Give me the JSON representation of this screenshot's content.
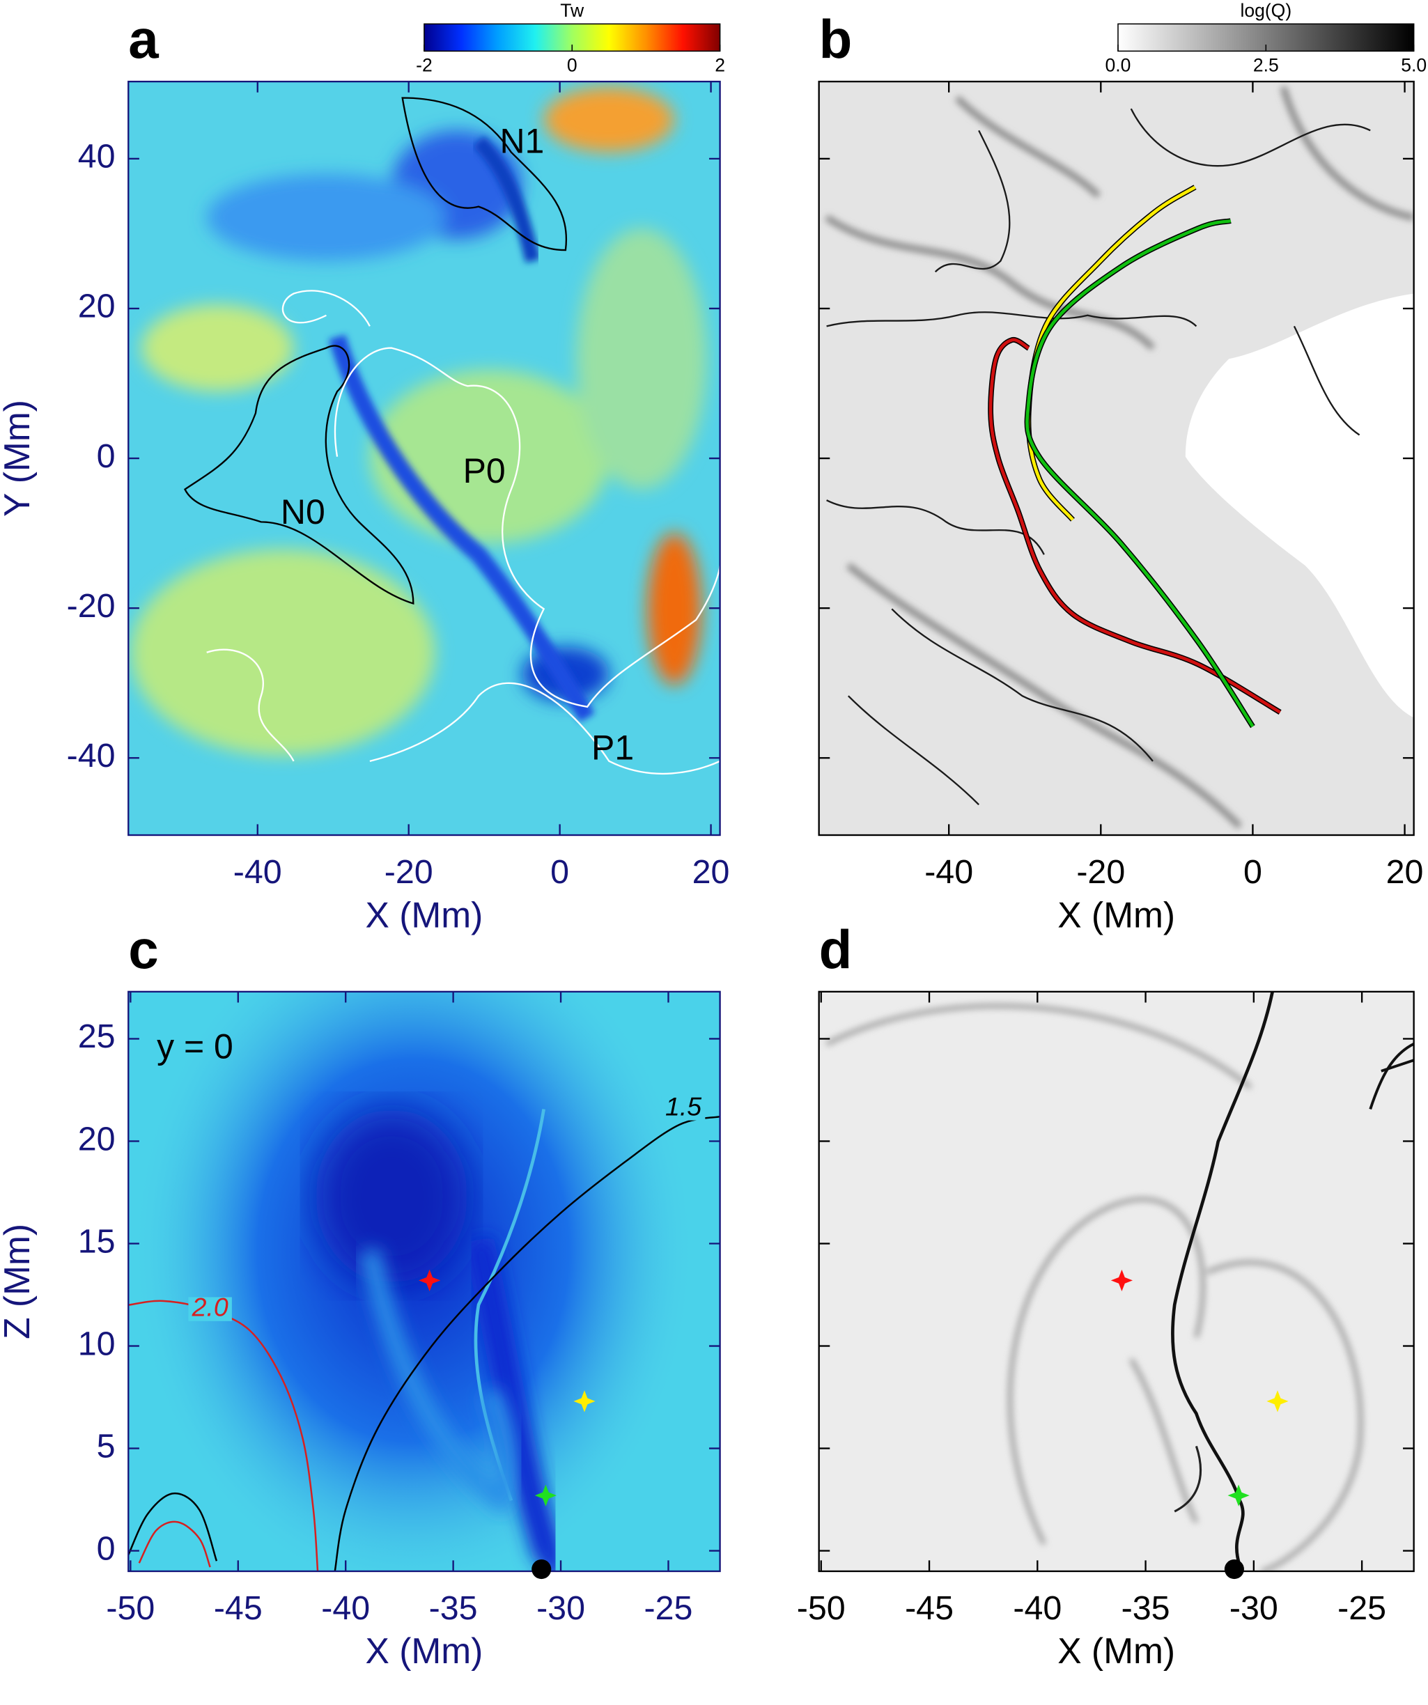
{
  "chart_data": [
    {
      "type": "heatmap",
      "panel_label": "a",
      "xlabel": "X (Mm)",
      "ylabel": "Y (Mm)",
      "xlim": [
        -57.1,
        21.2
      ],
      "ylim": [
        -50.3,
        50.3
      ],
      "xticks": [
        -40,
        -20,
        0,
        20
      ],
      "yticks": [
        -40,
        -20,
        0,
        20,
        40
      ],
      "tick_labels": {
        "x": true,
        "y": true
      },
      "axis_color": "#15157a",
      "colorbar": {
        "title": "Tw",
        "lim": [
          -2,
          2
        ],
        "ticks": [
          -2,
          0,
          2
        ],
        "colormap": [
          "#00008f",
          "#0030ff",
          "#00a0ff",
          "#20f0f0",
          "#a0ff60",
          "#ffff00",
          "#ff9000",
          "#ff1000",
          "#800000"
        ]
      },
      "annotations": [
        {
          "text": "N1",
          "color": "#000000"
        },
        {
          "text": "N0",
          "color": "#000000"
        },
        {
          "text": "P0",
          "color": "#000000"
        },
        {
          "text": "P1",
          "color": "#000000"
        }
      ]
    },
    {
      "type": "heatmap",
      "panel_label": "b",
      "xlabel": "X (Mm)",
      "xlim": [
        -57.1,
        21.2
      ],
      "ylim": [
        -50.3,
        50.3
      ],
      "xticks": [
        -40,
        -20,
        0,
        20
      ],
      "yticks": [
        -40,
        -20,
        0,
        20,
        40
      ],
      "tick_labels": {
        "x": true,
        "y": false
      },
      "axis_color": "#000000",
      "colorbar": {
        "title": "log(Q)",
        "lim": [
          0,
          5
        ],
        "ticks": [
          {
            "value": 0,
            "label": "0.0"
          },
          2.5,
          {
            "value": 5,
            "label": "5.0"
          }
        ],
        "colormap": [
          "#ffffff",
          "#000000"
        ]
      },
      "lines": [
        {
          "color": "#d01010",
          "x": [
            3.6,
            -7.2,
            -16,
            -23.7,
            -28,
            -30.9,
            -33.5,
            -34.5,
            -33.8,
            -31.7,
            -29.5
          ],
          "y": [
            -33.9,
            -27.5,
            -24.5,
            -20.8,
            -15,
            -7,
            0,
            6,
            13.3,
            15.8,
            14.7
          ]
        },
        {
          "color": "#ffee00",
          "x": [
            -23.7,
            -28.1,
            -29.5,
            -27.3,
            -20.1,
            -12.9,
            -7.6
          ],
          "y": [
            -8.2,
            -2.7,
            6,
            17.6,
            26.3,
            32.9,
            36.2
          ]
        },
        {
          "color": "#10c010",
          "x": [
            0,
            -7.2,
            -17.3,
            -28.1,
            -29.5,
            -26.6,
            -17.3,
            -7.2,
            -2.9
          ],
          "y": [
            -35.8,
            -24.5,
            -11.4,
            0.2,
            7.5,
            17.6,
            25.6,
            30.7,
            31.7
          ]
        }
      ]
    },
    {
      "type": "heatmap",
      "panel_label": "c",
      "xlabel": "X (Mm)",
      "ylabel": "Z (Mm)",
      "xlim": [
        -50.1,
        -22.6
      ],
      "ylim": [
        -1,
        27.3
      ],
      "xticks": [
        -50,
        -45,
        -40,
        -35,
        -30,
        -25
      ],
      "yticks": [
        0,
        5,
        10,
        15,
        20,
        25
      ],
      "tick_labels": {
        "x": true,
        "y": true
      },
      "axis_color": "#15157a",
      "annotations": [
        {
          "text": "y = 0",
          "color": "#000000"
        }
      ],
      "contours": [
        {
          "level": 1.5,
          "color": "#000000"
        },
        {
          "level": {
            "value": 2,
            "label": "2.0"
          },
          "color": "#d62020"
        }
      ],
      "markers": {
        "x": [
          -36.1,
          -28.9,
          -30.7,
          -30.9
        ],
        "y": [
          13.2,
          7.3,
          2.7,
          -0.9
        ],
        "colors": [
          "#ff1010",
          "#ffee00",
          "#20e020",
          "#000000"
        ],
        "shapes": [
          "star",
          "star",
          "star",
          "dot"
        ]
      }
    },
    {
      "type": "heatmap",
      "panel_label": "d",
      "xlabel": "X (Mm)",
      "xlim": [
        -50.1,
        -22.6
      ],
      "ylim": [
        -1,
        27.3
      ],
      "xticks": [
        -50,
        -45,
        -40,
        -35,
        -30,
        -25
      ],
      "yticks": [
        0,
        5,
        10,
        15,
        20,
        25
      ],
      "tick_labels": {
        "x": true,
        "y": false
      },
      "axis_color": "#000000",
      "markers": {
        "x": [
          -36.1,
          -28.9,
          -30.7,
          -30.9
        ],
        "y": [
          13.2,
          7.3,
          2.7,
          -0.9
        ],
        "colors": [
          "#ff1010",
          "#ffee00",
          "#20e020",
          "#000000"
        ],
        "shapes": [
          "star",
          "star",
          "star",
          "dot"
        ]
      }
    }
  ]
}
